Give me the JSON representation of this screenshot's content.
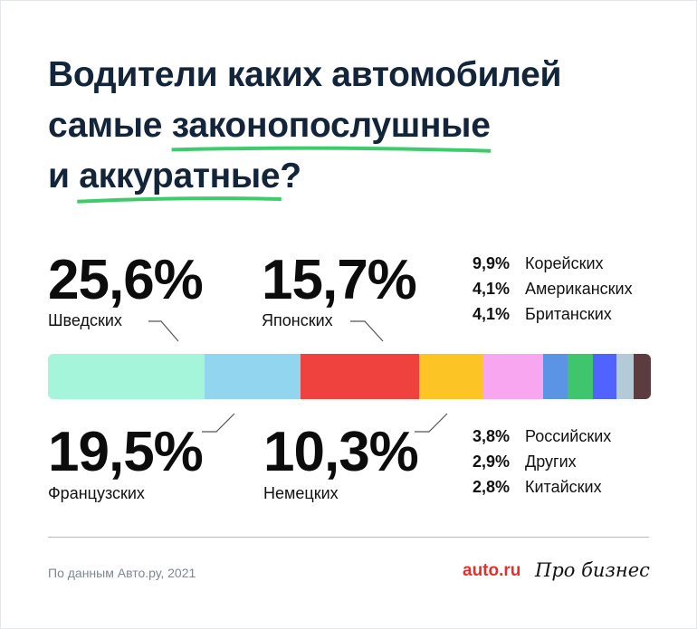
{
  "title": {
    "line1": "Водители каких автомобилей",
    "line2_pre": "самые ",
    "line2_hl": "законопослушные",
    "line3_pre": "и ",
    "line3_hl": "аккуратные",
    "line3_post": "?"
  },
  "chart_data": {
    "type": "bar",
    "subtype": "stacked-horizontal",
    "title": "Водители каких автомобилей самые законопослушные и аккуратные?",
    "unit": "%",
    "segments": [
      {
        "name": "Шведских",
        "value": 25.6,
        "label": "25,6%",
        "color": "#a5f5da"
      },
      {
        "name": "Японских",
        "value": 15.7,
        "label": "15,7%",
        "color": "#92d5ee"
      },
      {
        "name": "Французских",
        "value": 19.5,
        "label": "19,5%",
        "color": "#ef413e"
      },
      {
        "name": "Немецких",
        "value": 10.3,
        "label": "10,3%",
        "color": "#fdc425"
      },
      {
        "name": "Корейских",
        "value": 9.9,
        "label": "9,9%",
        "color": "#f9a6f0"
      },
      {
        "name": "Американских",
        "value": 4.1,
        "label": "4,1%",
        "color": "#5b94e5"
      },
      {
        "name": "Британских",
        "value": 4.1,
        "label": "4,1%",
        "color": "#3fc56b"
      },
      {
        "name": "Российских",
        "value": 3.8,
        "label": "3,8%",
        "color": "#5062ff"
      },
      {
        "name": "Других",
        "value": 2.9,
        "label": "2,9%",
        "color": "#b2cbd6"
      },
      {
        "name": "Китайских",
        "value": 2.8,
        "label": "2,8%",
        "color": "#5c3c40"
      }
    ]
  },
  "footer": {
    "source": "По данным Авто.ру, 2021",
    "logo_auto": "auto.ru",
    "logo_pro": "Про бизнес"
  },
  "colors": {
    "underline": "#3ecc6a",
    "divider": "#e9a3a3"
  }
}
